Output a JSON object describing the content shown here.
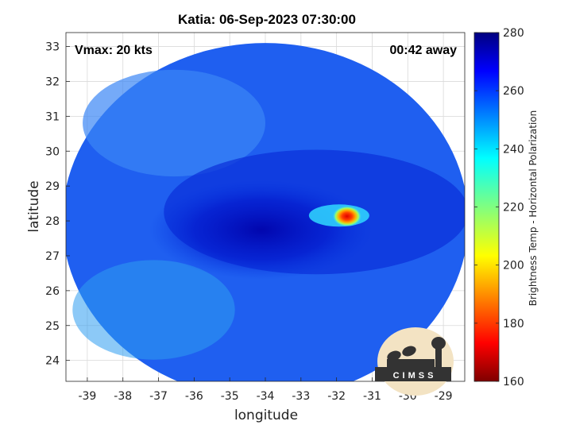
{
  "chart_data": {
    "type": "heatmap",
    "title": "Katia: 06-Sep-2023 07:30:00",
    "xlabel": "longitude",
    "ylabel": "latitude",
    "xlim": [
      -39.6,
      -28.4
    ],
    "ylim": [
      23.4,
      33.4
    ],
    "xticks": [
      -39,
      -38,
      -37,
      -36,
      -35,
      -34,
      -33,
      -32,
      -31,
      -30,
      -29
    ],
    "yticks": [
      24,
      25,
      26,
      27,
      28,
      29,
      30,
      31,
      32,
      33
    ],
    "grid": true,
    "colorbar": {
      "label": "Brightness Temp - Horizontal Polarization",
      "range": [
        160,
        280
      ],
      "ticks": [
        160,
        180,
        200,
        220,
        240,
        260,
        280
      ],
      "colormap": "jet"
    },
    "swath": {
      "center": [
        -34.0,
        28.0
      ],
      "lon_radius": 5.7,
      "lat_radius": 5.1
    },
    "storm": {
      "center": [
        -31.75,
        28.2
      ],
      "min_temp": 185,
      "ring_temp": 235
    },
    "annotations": {
      "vmax": "Vmax: 20 kts",
      "time_offset": "00:42 away"
    },
    "logo": "CIMSS"
  },
  "colors": {
    "background": "#ffffff",
    "grid": "#d9d9d9",
    "logo_bg": "#f3e3c3",
    "logo_dark": "#333333"
  }
}
